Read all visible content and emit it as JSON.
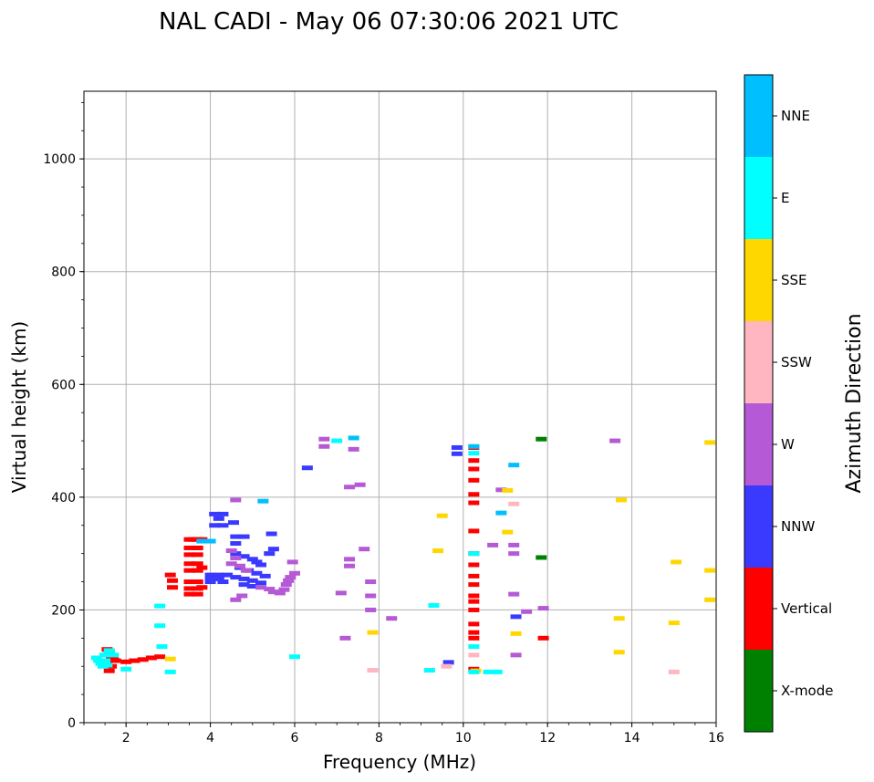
{
  "chart_data": {
    "type": "scatter",
    "title": "NAL CADI - May 06 07:30:06 2021 UTC",
    "xlabel": "Frequency (MHz)",
    "ylabel": "Virtual height (km)",
    "xlim": [
      1,
      16
    ],
    "ylim": [
      0,
      1120
    ],
    "xticks": [
      2,
      4,
      6,
      8,
      10,
      12,
      14,
      16
    ],
    "yticks": [
      0,
      200,
      400,
      600,
      800,
      1000
    ],
    "grid": true,
    "colorbar": {
      "title": "Azimuth Direction",
      "categories": [
        {
          "name": "X-mode",
          "color": "#008000"
        },
        {
          "name": "Vertical",
          "color": "#ff0000"
        },
        {
          "name": "NNW",
          "color": "#3a3aff"
        },
        {
          "name": "W",
          "color": "#b559d6"
        },
        {
          "name": "SSW",
          "color": "#ffb6c1"
        },
        {
          "name": "SSE",
          "color": "#ffd700"
        },
        {
          "name": "E",
          "color": "#00ffff"
        },
        {
          "name": "NNE",
          "color": "#00bfff"
        }
      ]
    },
    "series": [
      {
        "name": "X-mode",
        "points": [
          [
            11.85,
            503
          ],
          [
            11.85,
            293
          ]
        ]
      },
      {
        "name": "Vertical",
        "points": [
          [
            1.55,
            130
          ],
          [
            1.6,
            125
          ],
          [
            1.65,
            118
          ],
          [
            1.7,
            112
          ],
          [
            1.75,
            110
          ],
          [
            1.65,
            100
          ],
          [
            1.6,
            92
          ],
          [
            2.0,
            108
          ],
          [
            2.2,
            110
          ],
          [
            2.4,
            112
          ],
          [
            2.6,
            115
          ],
          [
            2.8,
            117
          ],
          [
            3.05,
            262
          ],
          [
            3.1,
            252
          ],
          [
            3.1,
            240
          ],
          [
            3.5,
            325
          ],
          [
            3.6,
            325
          ],
          [
            3.7,
            325
          ],
          [
            3.8,
            325
          ],
          [
            3.5,
            310
          ],
          [
            3.7,
            310
          ],
          [
            3.5,
            298
          ],
          [
            3.7,
            298
          ],
          [
            3.5,
            282
          ],
          [
            3.7,
            282
          ],
          [
            3.8,
            275
          ],
          [
            3.5,
            270
          ],
          [
            3.7,
            270
          ],
          [
            3.5,
            250
          ],
          [
            3.7,
            250
          ],
          [
            3.8,
            240
          ],
          [
            3.5,
            238
          ],
          [
            3.7,
            238
          ],
          [
            3.5,
            228
          ],
          [
            3.7,
            228
          ],
          [
            10.25,
            488
          ],
          [
            10.25,
            465
          ],
          [
            10.25,
            450
          ],
          [
            10.25,
            430
          ],
          [
            10.25,
            405
          ],
          [
            10.25,
            390
          ],
          [
            10.25,
            340
          ],
          [
            10.25,
            300
          ],
          [
            10.25,
            280
          ],
          [
            10.25,
            260
          ],
          [
            10.25,
            245
          ],
          [
            10.25,
            225
          ],
          [
            10.25,
            215
          ],
          [
            10.25,
            200
          ],
          [
            10.25,
            175
          ],
          [
            10.25,
            160
          ],
          [
            10.25,
            150
          ],
          [
            10.25,
            95
          ],
          [
            11.9,
            150
          ]
        ]
      },
      {
        "name": "NNW",
        "points": [
          [
            4.1,
            370
          ],
          [
            4.3,
            370
          ],
          [
            4.2,
            362
          ],
          [
            4.1,
            350
          ],
          [
            4.3,
            350
          ],
          [
            4.55,
            355
          ],
          [
            4.6,
            330
          ],
          [
            4.8,
            330
          ],
          [
            4.6,
            318
          ],
          [
            4.0,
            262
          ],
          [
            4.2,
            262
          ],
          [
            4.4,
            262
          ],
          [
            4.0,
            255
          ],
          [
            4.2,
            255
          ],
          [
            4.0,
            250
          ],
          [
            4.3,
            250
          ],
          [
            4.6,
            300
          ],
          [
            4.8,
            295
          ],
          [
            5.0,
            290
          ],
          [
            5.1,
            285
          ],
          [
            5.2,
            280
          ],
          [
            4.7,
            275
          ],
          [
            4.9,
            270
          ],
          [
            5.1,
            265
          ],
          [
            5.3,
            260
          ],
          [
            4.6,
            258
          ],
          [
            4.8,
            255
          ],
          [
            5.0,
            252
          ],
          [
            5.2,
            248
          ],
          [
            4.8,
            245
          ],
          [
            5.0,
            242
          ],
          [
            5.4,
            300
          ],
          [
            5.5,
            308
          ],
          [
            5.45,
            335
          ],
          [
            6.3,
            452
          ],
          [
            9.85,
            488
          ],
          [
            9.85,
            477
          ],
          [
            9.65,
            107
          ],
          [
            11.25,
            188
          ]
        ]
      },
      {
        "name": "W",
        "points": [
          [
            4.6,
            395
          ],
          [
            4.5,
            305
          ],
          [
            4.6,
            292
          ],
          [
            4.5,
            282
          ],
          [
            4.7,
            278
          ],
          [
            4.85,
            270
          ],
          [
            5.2,
            240
          ],
          [
            5.4,
            237
          ],
          [
            5.5,
            232
          ],
          [
            5.65,
            230
          ],
          [
            5.75,
            236
          ],
          [
            5.8,
            245
          ],
          [
            5.85,
            252
          ],
          [
            5.9,
            258
          ],
          [
            6.0,
            265
          ],
          [
            5.95,
            285
          ],
          [
            4.75,
            225
          ],
          [
            4.6,
            218
          ],
          [
            6.7,
            503
          ],
          [
            6.7,
            490
          ],
          [
            7.4,
            485
          ],
          [
            7.3,
            418
          ],
          [
            7.55,
            422
          ],
          [
            7.3,
            290
          ],
          [
            7.3,
            278
          ],
          [
            7.65,
            308
          ],
          [
            7.8,
            250
          ],
          [
            7.1,
            230
          ],
          [
            7.2,
            150
          ],
          [
            7.8,
            200
          ],
          [
            7.8,
            225
          ],
          [
            8.3,
            185
          ],
          [
            10.9,
            413
          ],
          [
            10.7,
            315
          ],
          [
            11.2,
            315
          ],
          [
            11.2,
            300
          ],
          [
            11.2,
            228
          ],
          [
            11.25,
            120
          ],
          [
            11.5,
            197
          ],
          [
            11.9,
            203
          ],
          [
            13.6,
            500
          ]
        ]
      },
      {
        "name": "SSW",
        "points": [
          [
            11.2,
            388
          ],
          [
            9.6,
            100
          ],
          [
            10.25,
            120
          ],
          [
            7.85,
            93
          ],
          [
            15.0,
            90
          ]
        ]
      },
      {
        "name": "SSE",
        "points": [
          [
            3.05,
            113
          ],
          [
            7.85,
            160
          ],
          [
            9.5,
            367
          ],
          [
            9.4,
            305
          ],
          [
            10.3,
            92
          ],
          [
            11.05,
            412
          ],
          [
            11.05,
            338
          ],
          [
            11.25,
            158
          ],
          [
            13.75,
            395
          ],
          [
            13.7,
            185
          ],
          [
            13.7,
            125
          ],
          [
            15.05,
            285
          ],
          [
            15.0,
            177
          ],
          [
            15.85,
            497
          ],
          [
            15.85,
            270
          ],
          [
            15.85,
            218
          ]
        ]
      },
      {
        "name": "E",
        "points": [
          [
            1.3,
            115
          ],
          [
            1.35,
            110
          ],
          [
            1.4,
            105
          ],
          [
            1.45,
            100
          ],
          [
            1.5,
            120
          ],
          [
            1.6,
            128
          ],
          [
            1.7,
            120
          ],
          [
            1.5,
            110
          ],
          [
            1.55,
            102
          ],
          [
            2.0,
            95
          ],
          [
            2.8,
            207
          ],
          [
            2.8,
            172
          ],
          [
            2.85,
            135
          ],
          [
            3.05,
            90
          ],
          [
            6.0,
            117
          ],
          [
            7.0,
            500
          ],
          [
            9.2,
            93
          ],
          [
            9.3,
            208
          ],
          [
            10.25,
            478
          ],
          [
            10.25,
            300
          ],
          [
            10.25,
            135
          ],
          [
            10.25,
            90
          ],
          [
            10.6,
            90
          ],
          [
            10.8,
            90
          ]
        ]
      },
      {
        "name": "NNE",
        "points": [
          [
            5.25,
            393
          ],
          [
            3.8,
            322
          ],
          [
            4.0,
            322
          ],
          [
            7.4,
            505
          ],
          [
            10.9,
            372
          ],
          [
            11.2,
            457
          ],
          [
            10.25,
            490
          ]
        ]
      }
    ]
  }
}
